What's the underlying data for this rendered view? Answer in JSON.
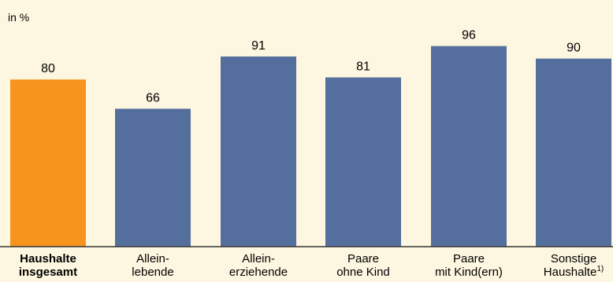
{
  "chart_data": {
    "type": "bar",
    "unit_label": "in %",
    "categories": [
      {
        "lines": [
          "Haushalte",
          "insgesamt"
        ],
        "footnote": "",
        "highlight": true
      },
      {
        "lines": [
          "Allein-",
          "lebende"
        ],
        "footnote": "",
        "highlight": false
      },
      {
        "lines": [
          "Allein-",
          "erziehende"
        ],
        "footnote": "",
        "highlight": false
      },
      {
        "lines": [
          "Paare",
          "ohne Kind"
        ],
        "footnote": "",
        "highlight": false
      },
      {
        "lines": [
          "Paare",
          "mit Kind(ern)"
        ],
        "footnote": "",
        "highlight": false
      },
      {
        "lines": [
          "Sonstige",
          "Haushalte"
        ],
        "footnote": "1)",
        "highlight": false
      }
    ],
    "values": [
      80,
      66,
      91,
      81,
      96,
      90
    ],
    "ylim": [
      0,
      100
    ],
    "colors": {
      "highlight": "#f7941d",
      "bar": "#546f9e",
      "background": "#fdf6e0",
      "baseline": "#333333"
    }
  }
}
